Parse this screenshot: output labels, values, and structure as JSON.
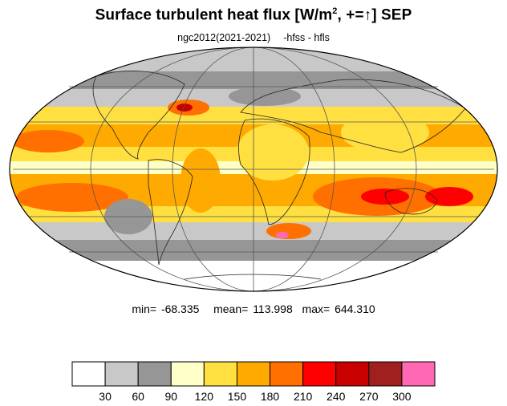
{
  "title": {
    "main": "Surface turbulent heat flux [W/m",
    "sup": "2",
    "rest": ", +=↑]  SEP"
  },
  "subtitle": {
    "case": "ngc2012(2021-2021)",
    "fields": "-hfss - hfls"
  },
  "stats": {
    "min_label": "min=",
    "min": "-68.335",
    "mean_label": "mean=",
    "mean": "113.998",
    "max_label": "max=",
    "max": "644.310"
  },
  "colorbar": {
    "colors": [
      "#ffffff",
      "#c8c8c8",
      "#969696",
      "#ffffc8",
      "#ffe040",
      "#ffaa00",
      "#ff7000",
      "#ff0000",
      "#c80000",
      "#a02020",
      "#ff69b4"
    ],
    "ticks": [
      "30",
      "60",
      "90",
      "120",
      "150",
      "180",
      "210",
      "240",
      "270",
      "300"
    ]
  }
}
